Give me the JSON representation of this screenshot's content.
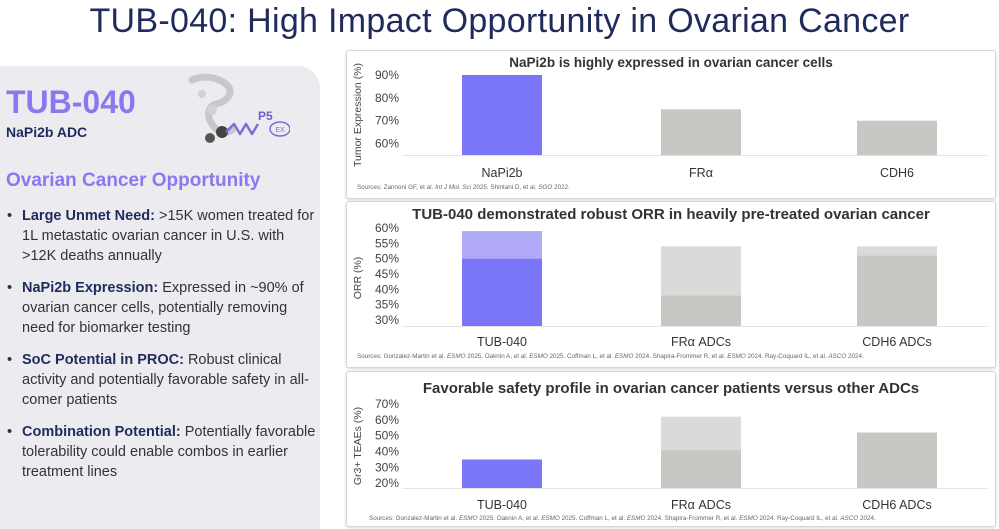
{
  "title": "TUB-040: High Impact Opportunity in Ovarian Cancer",
  "left": {
    "brand": "TUB-040",
    "subtitle": "NaPi2b ADC",
    "logo_text": {
      "p5": "P5",
      "ex": "EX"
    },
    "opportunity_title": "Ovarian Cancer Opportunity",
    "bullets": [
      {
        "head": "Large Unmet Need:",
        "text": ">15K women treated for 1L metastatic ovarian cancer in U.S. with >12K deaths annually"
      },
      {
        "head": "NaPi2b Expression:",
        "text": "Expressed in ~90% of ovarian cancer cells, potentially removing need for biomarker testing"
      },
      {
        "head": "SoC Potential in PROC:",
        "text": "Robust clinical activity and potentially favorable safety in all-comer patients"
      },
      {
        "head": "Combination Potential:",
        "text": "Potentially favorable tolerability could enable combos in earlier treatment lines"
      }
    ]
  },
  "colors": {
    "accent": "#7b76f7",
    "accent_light": "#b1aaf8",
    "gray": "#c6c8c3",
    "gray_light": "#dadbd8",
    "navy": "#1f2b5b"
  },
  "chart_data": [
    {
      "type": "bar",
      "title": "NaPi2b is highly expressed in ovarian cancer cells",
      "ylabel": "Tumor Expression (%)",
      "ylim": [
        55,
        90
      ],
      "yticks": [
        60,
        70,
        80,
        90
      ],
      "tick_labels": [
        "60%",
        "70%",
        "80%",
        "90%"
      ],
      "categories": [
        "NaPi2b",
        "FRα",
        "CDH6"
      ],
      "values": [
        90,
        75,
        70
      ],
      "source": [
        {
          "t": "Sources: Zannoni GF, et al. ",
          "i": false
        },
        {
          "t": "Int J Mol. Sci",
          "i": true
        },
        {
          "t": " 2025. Shintani D, et al. ",
          "i": false
        },
        {
          "t": "SGO",
          "i": true
        },
        {
          "t": " 2022.",
          "i": false
        }
      ]
    },
    {
      "type": "bar",
      "title": "TUB-040 demonstrated robust ORR in heavily pre-treated ovarian cancer",
      "ylabel": "ORR (%)",
      "ylim": [
        28,
        60
      ],
      "yticks": [
        30,
        35,
        40,
        45,
        50,
        55,
        60
      ],
      "tick_labels": [
        "30%",
        "35%",
        "40%",
        "45%",
        "50%",
        "55%",
        "60%"
      ],
      "categories": [
        "TUB-040",
        "FRα ADCs",
        "CDH6 ADCs"
      ],
      "series": [
        {
          "name": "low",
          "values": [
            50,
            38,
            51
          ]
        },
        {
          "name": "high",
          "values": [
            59,
            54,
            54
          ]
        }
      ],
      "source": [
        {
          "t": "Sources: Gonzalez-Martin et al. ",
          "i": false
        },
        {
          "t": "ESMO",
          "i": true
        },
        {
          "t": " 2025. Oaknin A, et al. ",
          "i": false
        },
        {
          "t": "ESMO",
          "i": true
        },
        {
          "t": " 2025. Coffman L, et al. ",
          "i": false
        },
        {
          "t": "ESMO",
          "i": true
        },
        {
          "t": " 2024. Shapira-Frommer R, et al. ",
          "i": false
        },
        {
          "t": "ESMO",
          "i": true
        },
        {
          "t": " 2024. Ray-Coquard IL, et al. ",
          "i": false
        },
        {
          "t": "ASCO",
          "i": true
        },
        {
          "t": " 2024.",
          "i": false
        }
      ]
    },
    {
      "type": "bar",
      "title": "Favorable safety profile in ovarian cancer patients versus other ADCs",
      "ylabel": "Gr3+ TEAEs (%)",
      "ylim": [
        17,
        70
      ],
      "yticks": [
        20,
        30,
        40,
        50,
        60,
        70
      ],
      "tick_labels": [
        "20%",
        "30%",
        "40%",
        "50%",
        "60%",
        "70%"
      ],
      "categories": [
        "TUB-040",
        "FRα ADCs",
        "CDH6 ADCs"
      ],
      "series": [
        {
          "name": "low",
          "values": [
            35,
            41,
            52
          ]
        },
        {
          "name": "high",
          "values": [
            35,
            62,
            52
          ]
        }
      ],
      "source": [
        {
          "t": "Sources: Gonzalez-Martin et al. ",
          "i": false
        },
        {
          "t": "ESMO",
          "i": true
        },
        {
          "t": " 2025. Oaknin A, et al. ",
          "i": false
        },
        {
          "t": "ESMO",
          "i": true
        },
        {
          "t": " 2025. Coffman L, et al. ",
          "i": false
        },
        {
          "t": "ESMO",
          "i": true
        },
        {
          "t": " 2024. Shapira-Frommer R, et al. ",
          "i": false
        },
        {
          "t": "ESMO",
          "i": true
        },
        {
          "t": " 2024. Ray-Coquard IL, et al. ",
          "i": false
        },
        {
          "t": "ASCO",
          "i": true
        },
        {
          "t": " 2024.",
          "i": false
        }
      ]
    }
  ]
}
